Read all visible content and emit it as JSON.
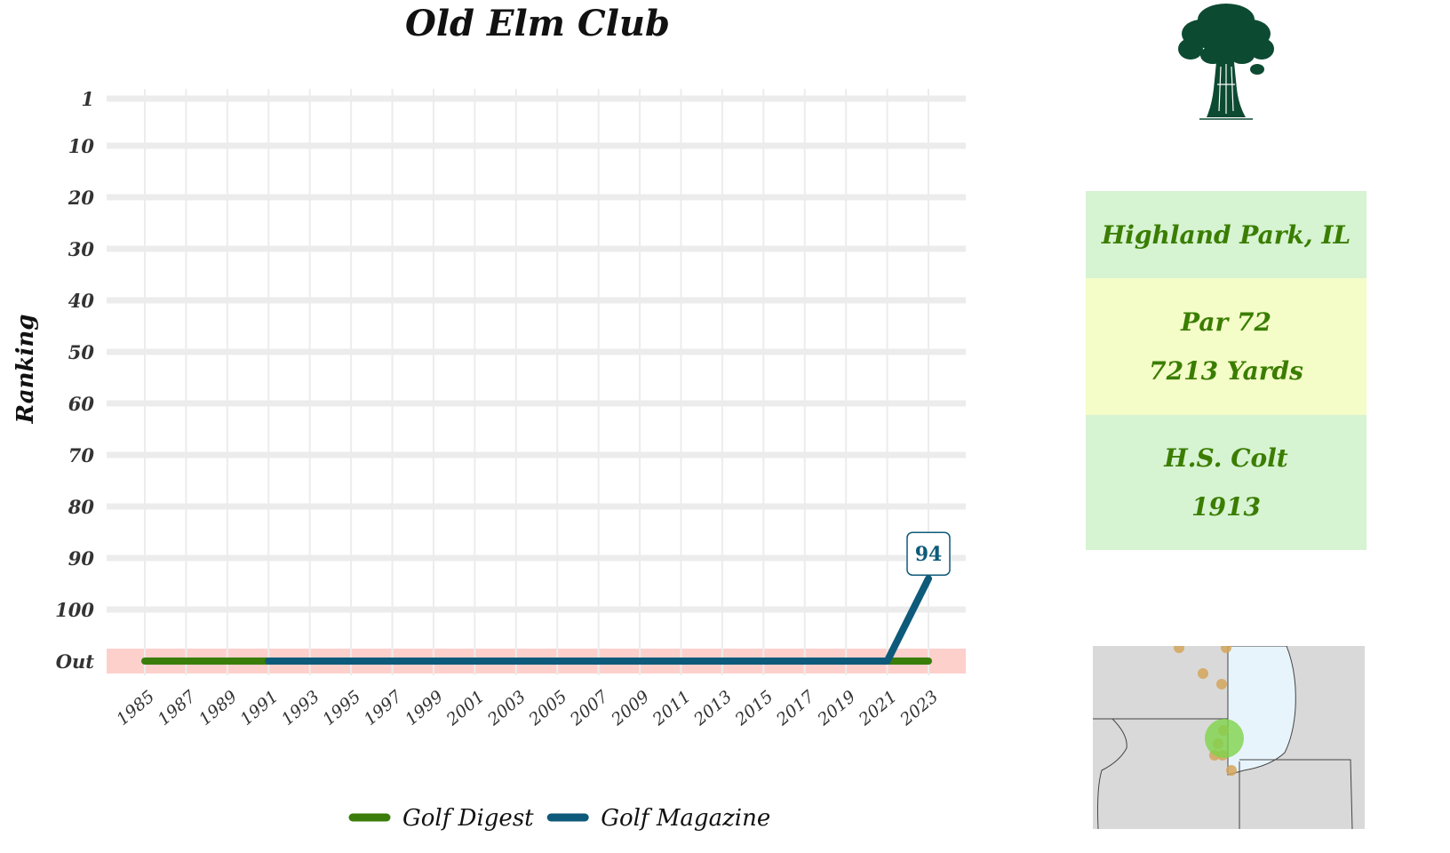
{
  "chart_data": {
    "type": "line",
    "title": "Old Elm Club",
    "ylabel": "Ranking",
    "xlabel": "",
    "y_tick_labels": [
      "1",
      "10",
      "20",
      "30",
      "40",
      "50",
      "60",
      "70",
      "80",
      "90",
      "100",
      "Out"
    ],
    "y_tick_values": [
      1,
      10,
      20,
      30,
      40,
      50,
      60,
      70,
      80,
      90,
      100,
      110
    ],
    "ylim": [
      110,
      1
    ],
    "out_value": 110,
    "x_ticks": [
      1985,
      1987,
      1989,
      1991,
      1993,
      1995,
      1997,
      1999,
      2001,
      2003,
      2005,
      2007,
      2009,
      2011,
      2013,
      2015,
      2017,
      2019,
      2021,
      2023
    ],
    "xlim": [
      1985,
      2023
    ],
    "grid": true,
    "legend_position": "bottom",
    "series": [
      {
        "name": "Golf Digest",
        "color": "#3a7d0a",
        "points": [
          [
            1985,
            110
          ],
          [
            2023,
            110
          ]
        ]
      },
      {
        "name": "Golf Magazine",
        "color": "#0e5a7a",
        "points": [
          [
            1991,
            110
          ],
          [
            2021,
            110
          ],
          [
            2023,
            94
          ]
        ]
      }
    ],
    "annotations": [
      {
        "x": 2023,
        "y": 94,
        "label": "94",
        "series": "Golf Magazine"
      }
    ]
  },
  "info": {
    "location": "Highland Park, IL",
    "par": "Par 72",
    "yards": "7213 Yards",
    "architect": "H.S. Colt",
    "year": "1913"
  },
  "colors": {
    "out_band": "#fdd0cc",
    "grid": "#ececec",
    "info_green": "#d6f3d2",
    "info_yellow": "#f4fcc8",
    "info_text": "#3a7d00",
    "logo": "#0d4a32",
    "map_land": "#d9d9d9",
    "map_water": "#e8f4fc",
    "map_highlight": "#7ed34a",
    "map_marker": "#d4a55a"
  },
  "icons": {
    "logo": "elm-tree-icon",
    "map": "regional-map"
  }
}
